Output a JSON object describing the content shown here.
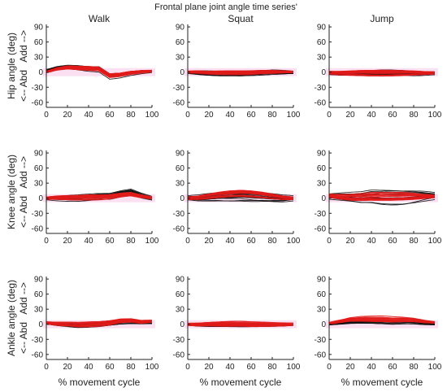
{
  "figure": {
    "title": "Frontal plane joint angle time series'",
    "columns": [
      "Walk",
      "Squat",
      "Jump"
    ],
    "row_labels": [
      {
        "line1": "Hip angle (deg)",
        "line2": "<-- Abd   Add -->"
      },
      {
        "line1": "Knee angle (deg)",
        "line2": "<-- Abd   Add -->"
      },
      {
        "line1": "Ankle angle (deg)",
        "line2": "<-- Abd   Add -->"
      }
    ],
    "xlabel": "% movement cycle"
  },
  "colors": {
    "black_traces": "#111111",
    "red_traces": "#e01a1a",
    "band": "#f7c6e8",
    "axis": "#222222"
  },
  "chart_data": {
    "type": "line",
    "layout": "3x3 small multiples",
    "x_ticks": [
      0,
      20,
      40,
      60,
      80,
      100
    ],
    "y_ticks": [
      90,
      60,
      30,
      0,
      -30,
      -60
    ],
    "xlim": [
      0,
      100
    ],
    "ylim": [
      -70,
      95
    ],
    "series_legend": "none",
    "x": [
      0,
      10,
      20,
      30,
      40,
      50,
      60,
      70,
      80,
      90,
      100
    ],
    "panels": [
      {
        "row": "Hip",
        "col": "Walk",
        "black_mean": [
          3,
          8,
          10,
          9,
          7,
          6,
          -8,
          -6,
          -2,
          0,
          1
        ],
        "black_spread": 5,
        "red_mean": [
          0,
          6,
          9,
          8,
          7,
          6,
          -7,
          -5,
          -1,
          1,
          2
        ],
        "red_spread": 4
      },
      {
        "row": "Hip",
        "col": "Squat",
        "black_mean": [
          0,
          -1,
          -2,
          -3,
          -3,
          -3,
          -2,
          -1,
          0,
          0,
          0
        ],
        "black_spread": 6,
        "red_mean": [
          0,
          0,
          -1,
          -1,
          -1,
          -1,
          -1,
          0,
          0,
          0,
          0
        ],
        "red_spread": 4
      },
      {
        "row": "Hip",
        "col": "Jump",
        "black_mean": [
          -2,
          -3,
          -3,
          -3,
          -3,
          -2,
          -2,
          -2,
          -3,
          -3,
          -3
        ],
        "black_spread": 6,
        "red_mean": [
          -1,
          -2,
          -2,
          -2,
          -2,
          -2,
          -2,
          -2,
          -2,
          -2,
          -2
        ],
        "red_spread": 6
      },
      {
        "row": "Knee",
        "col": "Walk",
        "black_mean": [
          0,
          0,
          0,
          0,
          1,
          2,
          3,
          8,
          12,
          5,
          0
        ],
        "black_spread": 7,
        "red_mean": [
          0,
          1,
          1,
          1,
          2,
          2,
          3,
          6,
          8,
          4,
          1
        ],
        "red_spread": 5
      },
      {
        "row": "Knee",
        "col": "Squat",
        "black_mean": [
          0,
          0,
          2,
          4,
          5,
          6,
          5,
          4,
          2,
          0,
          0
        ],
        "black_spread": 12,
        "red_mean": [
          0,
          1,
          4,
          7,
          9,
          10,
          9,
          7,
          4,
          1,
          0
        ],
        "red_spread": 7
      },
      {
        "row": "Knee",
        "col": "Jump",
        "black_mean": [
          4,
          3,
          2,
          1,
          3,
          2,
          2,
          2,
          3,
          4,
          4
        ],
        "black_spread": 14,
        "red_mean": [
          5,
          4,
          3,
          3,
          4,
          4,
          4,
          4,
          4,
          4,
          4
        ],
        "red_spread": 9
      },
      {
        "row": "Ankle",
        "col": "Walk",
        "black_mean": [
          2,
          0,
          -1,
          -2,
          -1,
          0,
          2,
          4,
          4,
          3,
          3
        ],
        "black_spread": 5,
        "red_mean": [
          3,
          1,
          0,
          -1,
          0,
          1,
          3,
          7,
          8,
          5,
          6
        ],
        "red_spread": 5
      },
      {
        "row": "Ankle",
        "col": "Squat",
        "black_mean": [
          -1,
          -2,
          -2,
          -2,
          -2,
          -2,
          -2,
          -2,
          -2,
          -2,
          -1
        ],
        "black_spread": 3,
        "red_mean": [
          0,
          0,
          1,
          1,
          1,
          1,
          0,
          0,
          0,
          0,
          0
        ],
        "red_spread": 5
      },
      {
        "row": "Ankle",
        "col": "Jump",
        "black_mean": [
          0,
          2,
          4,
          5,
          5,
          5,
          4,
          4,
          3,
          1,
          0
        ],
        "black_spread": 4,
        "red_mean": [
          2,
          6,
          10,
          11,
          11,
          11,
          10,
          10,
          9,
          6,
          4
        ],
        "red_spread": 5
      }
    ]
  }
}
